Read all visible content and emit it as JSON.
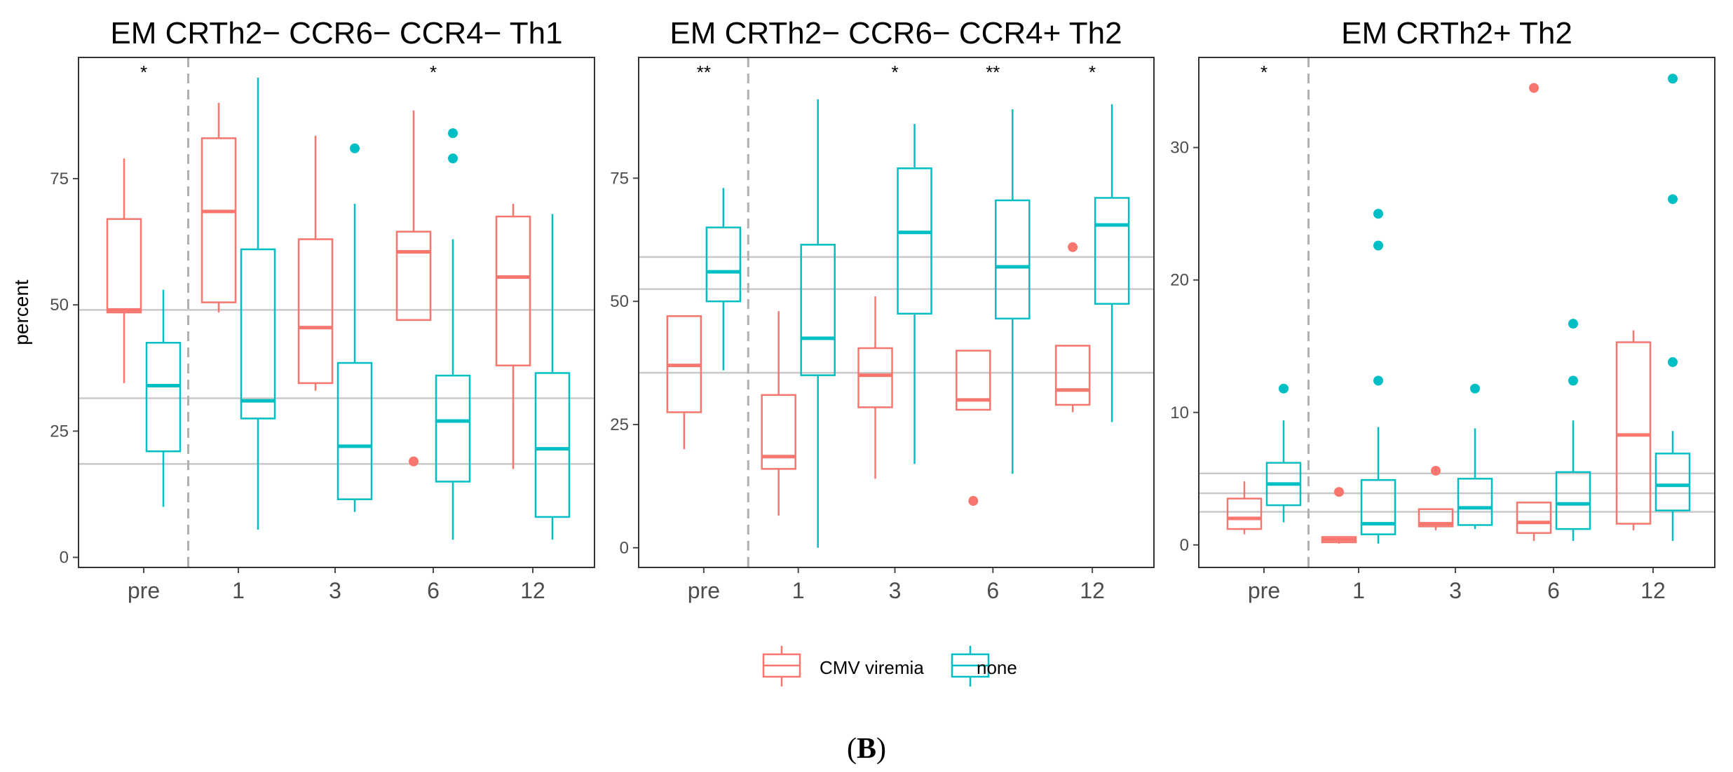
{
  "figure": {
    "caption_open": "(",
    "caption_label": "B",
    "caption_close": ")",
    "colors": {
      "cmv": "#F8766D",
      "none": "#00BFC4",
      "grid": "#c8c8c8",
      "axis": "#4d4d4d"
    }
  },
  "legend": {
    "items": [
      {
        "label": "CMV viremia",
        "color": "#F8766D"
      },
      {
        "label": "none",
        "color": "#00BFC4"
      }
    ]
  },
  "chart_data": [
    {
      "type": "boxplot",
      "title": "EM CRTh2− CCR6− CCR4− Th1",
      "ylabel": "percent",
      "xlabel": "",
      "categories": [
        "pre",
        "1",
        "3",
        "6",
        "12"
      ],
      "ylim": [
        -2,
        99
      ],
      "yticks": [
        0,
        25,
        50,
        75
      ],
      "hlines": [
        49,
        31.5,
        18.5
      ],
      "vline_after": "pre",
      "significance": [
        {
          "category": "pre",
          "label": "*"
        },
        {
          "category": "6",
          "label": "*"
        }
      ],
      "series": [
        {
          "name": "CMV viremia",
          "boxes": [
            {
              "category": "pre",
              "min": 34.5,
              "q1": 48.5,
              "median": 49,
              "q3": 67,
              "max": 79,
              "outliers": []
            },
            {
              "category": "1",
              "min": 48.5,
              "q1": 50.5,
              "median": 68.5,
              "q3": 83,
              "max": 90,
              "outliers": []
            },
            {
              "category": "3",
              "min": 33,
              "q1": 34.5,
              "median": 45.5,
              "q3": 63,
              "max": 83.5,
              "outliers": []
            },
            {
              "category": "6",
              "min": 47,
              "q1": 47,
              "median": 60.5,
              "q3": 64.5,
              "max": 88.5,
              "outliers": [
                19
              ]
            },
            {
              "category": "12",
              "min": 17.5,
              "q1": 38,
              "median": 55.5,
              "q3": 67.5,
              "max": 70,
              "outliers": []
            }
          ]
        },
        {
          "name": "none",
          "boxes": [
            {
              "category": "pre",
              "min": 10,
              "q1": 21,
              "median": 34,
              "q3": 42.5,
              "max": 53,
              "outliers": []
            },
            {
              "category": "1",
              "min": 5.5,
              "q1": 27.5,
              "median": 31,
              "q3": 61,
              "max": 95,
              "outliers": []
            },
            {
              "category": "3",
              "min": 9,
              "q1": 11.5,
              "median": 22,
              "q3": 38.5,
              "max": 70,
              "outliers": [
                81
              ]
            },
            {
              "category": "6",
              "min": 3.5,
              "q1": 15,
              "median": 27,
              "q3": 36,
              "max": 63,
              "outliers": [
                84,
                79
              ]
            },
            {
              "category": "12",
              "min": 3.5,
              "q1": 8,
              "median": 21.5,
              "q3": 36.5,
              "max": 68,
              "outliers": []
            }
          ]
        }
      ]
    },
    {
      "type": "boxplot",
      "title": "EM CRTh2− CCR6− CCR4+ Th2",
      "ylabel": "",
      "xlabel": "",
      "categories": [
        "pre",
        "1",
        "3",
        "6",
        "12"
      ],
      "ylim": [
        -4,
        99.5
      ],
      "yticks": [
        0,
        25,
        50,
        75
      ],
      "hlines": [
        59,
        52.5,
        35.5
      ],
      "vline_after": "pre",
      "significance": [
        {
          "category": "pre",
          "label": "**"
        },
        {
          "category": "3",
          "label": "*"
        },
        {
          "category": "6",
          "label": "**"
        },
        {
          "category": "12",
          "label": "*"
        }
      ],
      "series": [
        {
          "name": "CMV viremia",
          "boxes": [
            {
              "category": "pre",
              "min": 20,
              "q1": 27.5,
              "median": 37,
              "q3": 47,
              "max": 47,
              "outliers": []
            },
            {
              "category": "1",
              "min": 6.5,
              "q1": 16,
              "median": 18.5,
              "q3": 31,
              "max": 48,
              "outliers": []
            },
            {
              "category": "3",
              "min": 14,
              "q1": 28.5,
              "median": 35,
              "q3": 40.5,
              "max": 51,
              "outliers": []
            },
            {
              "category": "6",
              "min": 28,
              "q1": 28,
              "median": 30,
              "q3": 40,
              "max": 40,
              "outliers": [
                9.5
              ]
            },
            {
              "category": "12",
              "min": 27.5,
              "q1": 29,
              "median": 32,
              "q3": 41,
              "max": 41,
              "outliers": [
                61
              ]
            }
          ]
        },
        {
          "name": "none",
          "boxes": [
            {
              "category": "pre",
              "min": 36,
              "q1": 50,
              "median": 56,
              "q3": 65,
              "max": 73,
              "outliers": []
            },
            {
              "category": "1",
              "min": 0,
              "q1": 35,
              "median": 42.5,
              "q3": 61.5,
              "max": 91,
              "outliers": []
            },
            {
              "category": "3",
              "min": 17,
              "q1": 47.5,
              "median": 64,
              "q3": 77,
              "max": 86,
              "outliers": []
            },
            {
              "category": "6",
              "min": 15,
              "q1": 46.5,
              "median": 57,
              "q3": 70.5,
              "max": 89,
              "outliers": []
            },
            {
              "category": "12",
              "min": 25.5,
              "q1": 49.5,
              "median": 65.5,
              "q3": 71,
              "max": 90,
              "outliers": []
            }
          ]
        }
      ]
    },
    {
      "type": "boxplot",
      "title": "EM CRTh2+ Th2",
      "ylabel": "",
      "xlabel": "",
      "categories": [
        "pre",
        "1",
        "3",
        "6",
        "12"
      ],
      "ylim": [
        -1.7,
        36.8
      ],
      "yticks": [
        0,
        10,
        20,
        30
      ],
      "hlines": [
        5.4,
        3.9,
        2.5
      ],
      "vline_after": "pre",
      "significance": [
        {
          "category": "pre",
          "label": "*"
        }
      ],
      "series": [
        {
          "name": "CMV viremia",
          "boxes": [
            {
              "category": "pre",
              "min": 0.8,
              "q1": 1.2,
              "median": 2,
              "q3": 3.5,
              "max": 4.8,
              "outliers": []
            },
            {
              "category": "1",
              "min": 0.1,
              "q1": 0.2,
              "median": 0.4,
              "q3": 0.6,
              "max": 0.6,
              "outliers": [
                4
              ]
            },
            {
              "category": "3",
              "min": 1.1,
              "q1": 1.4,
              "median": 1.6,
              "q3": 2.7,
              "max": 2.7,
              "outliers": [
                5.6
              ]
            },
            {
              "category": "6",
              "min": 0.3,
              "q1": 0.9,
              "median": 1.7,
              "q3": 3.2,
              "max": 3.2,
              "outliers": [
                34.5
              ]
            },
            {
              "category": "12",
              "min": 1.1,
              "q1": 1.6,
              "median": 8.3,
              "q3": 15.3,
              "max": 16.2,
              "outliers": []
            }
          ]
        },
        {
          "name": "none",
          "boxes": [
            {
              "category": "pre",
              "min": 1.7,
              "q1": 3,
              "median": 4.6,
              "q3": 6.2,
              "max": 9.4,
              "outliers": [
                11.8
              ]
            },
            {
              "category": "1",
              "min": 0.1,
              "q1": 0.8,
              "median": 1.6,
              "q3": 4.9,
              "max": 8.9,
              "outliers": [
                12.4,
                22.6,
                25
              ]
            },
            {
              "category": "3",
              "min": 1.2,
              "q1": 1.5,
              "median": 2.8,
              "q3": 5,
              "max": 8.8,
              "outliers": [
                11.8
              ]
            },
            {
              "category": "6",
              "min": 0.3,
              "q1": 1.2,
              "median": 3.1,
              "q3": 5.5,
              "max": 9.4,
              "outliers": [
                12.4,
                16.7
              ]
            },
            {
              "category": "12",
              "min": 0.3,
              "q1": 2.6,
              "median": 4.5,
              "q3": 6.9,
              "max": 8.6,
              "outliers": [
                13.8,
                26.1,
                35.2
              ]
            }
          ]
        }
      ]
    }
  ]
}
